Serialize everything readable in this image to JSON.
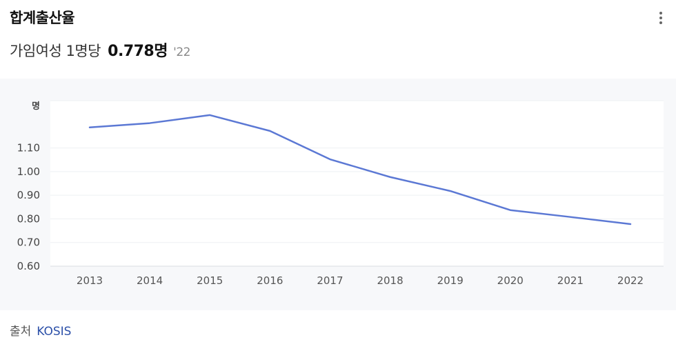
{
  "header": {
    "title": "합계출산율",
    "subtitle_prefix": "가임여성 1명당",
    "value": "0.778명",
    "year": "'22"
  },
  "source": {
    "label": "출처",
    "name": "KOSIS"
  },
  "chart_data": {
    "type": "line",
    "title": "",
    "xlabel": "",
    "ylabel": "명",
    "categories": [
      "2013",
      "2014",
      "2015",
      "2016",
      "2017",
      "2018",
      "2019",
      "2020",
      "2021",
      "2022"
    ],
    "series": [
      {
        "values": [
          1.187,
          1.205,
          1.239,
          1.172,
          1.052,
          0.977,
          0.918,
          0.837,
          0.808,
          0.778
        ]
      }
    ],
    "yticks": [
      "0.60",
      "0.70",
      "0.80",
      "0.90",
      "1.00",
      "1.10"
    ],
    "ylim": [
      0.6,
      1.3
    ],
    "grid": true,
    "line_color": "#5b78d4"
  }
}
